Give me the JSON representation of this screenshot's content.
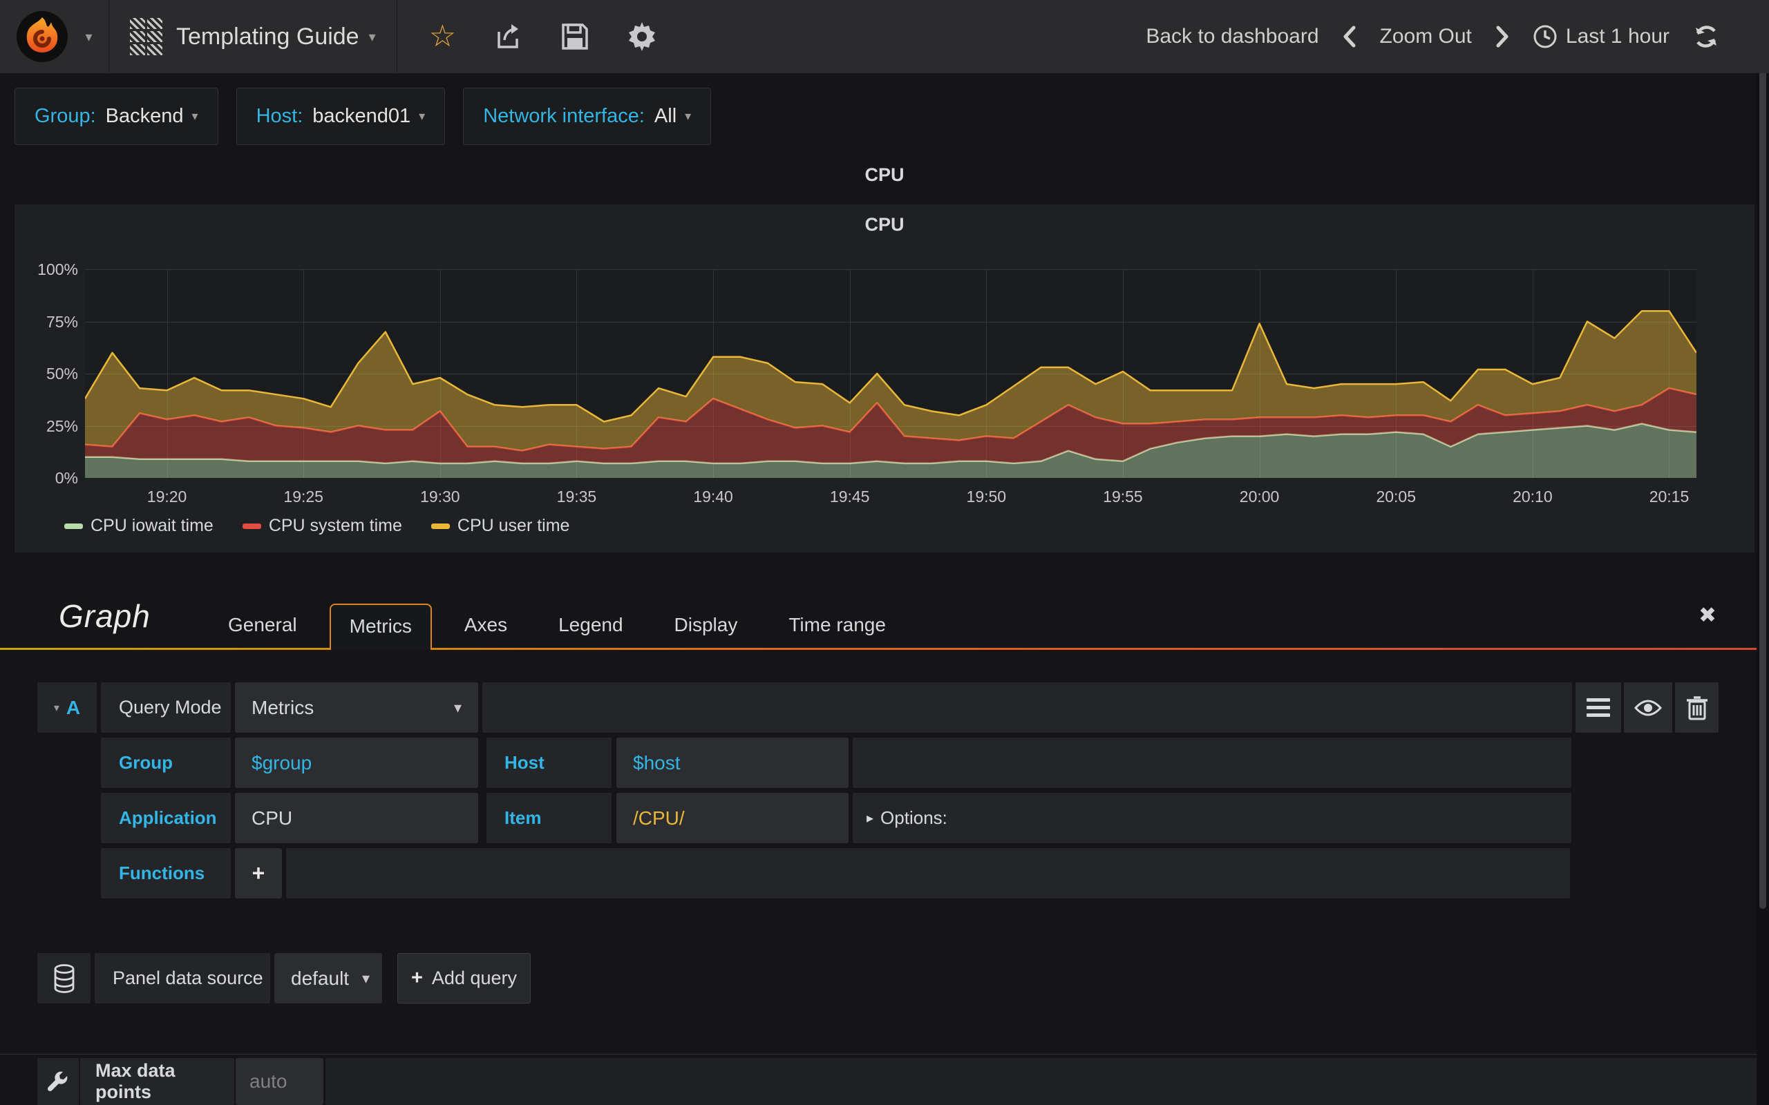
{
  "navbar": {
    "dashboard_title": "Templating Guide",
    "back_to_dashboard": "Back to dashboard",
    "zoom_out": "Zoom Out",
    "time_range": "Last 1 hour"
  },
  "variables": [
    {
      "label": "Group:",
      "value": "Backend"
    },
    {
      "label": "Host:",
      "value": "backend01"
    },
    {
      "label": "Network interface:",
      "value": "All"
    }
  ],
  "panel": {
    "header_title": "CPU",
    "graph_title": "CPU"
  },
  "chart_data": {
    "type": "area",
    "stacked": true,
    "title": "CPU",
    "xlabel": "",
    "ylabel": "",
    "ylim": [
      0,
      100
    ],
    "grid": true,
    "legend_position": "bottom-left",
    "fill_opacity": 0.45,
    "bg_color": "#1b1c1e",
    "grid_color": "#34353a",
    "y_ticks": [
      {
        "label": "0%",
        "value": 0
      },
      {
        "label": "25%",
        "value": 25
      },
      {
        "label": "50%",
        "value": 50
      },
      {
        "label": "75%",
        "value": 75
      },
      {
        "label": "100%",
        "value": 100
      }
    ],
    "x_start": "19:17",
    "x_end": "20:16",
    "x_span_minutes": 59,
    "x_ticks": [
      {
        "label": "19:20",
        "minute": 3
      },
      {
        "label": "19:25",
        "minute": 8
      },
      {
        "label": "19:30",
        "minute": 13
      },
      {
        "label": "19:35",
        "minute": 18
      },
      {
        "label": "19:40",
        "minute": 23
      },
      {
        "label": "19:45",
        "minute": 28
      },
      {
        "label": "19:50",
        "minute": 33
      },
      {
        "label": "19:55",
        "minute": 38
      },
      {
        "label": "20:00",
        "minute": 43
      },
      {
        "label": "20:05",
        "minute": 48
      },
      {
        "label": "20:10",
        "minute": 53
      },
      {
        "label": "20:15",
        "minute": 58
      }
    ],
    "series": [
      {
        "name": "CPU iowait time",
        "color": "#B7DBAB",
        "values": [
          10,
          10,
          9,
          9,
          9,
          9,
          8,
          8,
          8,
          8,
          8,
          7,
          8,
          7,
          7,
          8,
          7,
          7,
          8,
          7,
          7,
          8,
          8,
          7,
          7,
          8,
          8,
          7,
          7,
          8,
          7,
          7,
          8,
          8,
          7,
          8,
          13,
          9,
          8,
          14,
          17,
          19,
          20,
          20,
          21,
          20,
          21,
          21,
          22,
          21,
          15,
          21,
          22,
          23,
          24,
          25,
          23,
          26,
          23,
          22
        ]
      },
      {
        "name": "CPU system time",
        "color": "#E24D42",
        "values": [
          6,
          5,
          22,
          19,
          21,
          18,
          21,
          17,
          16,
          14,
          17,
          16,
          15,
          25,
          8,
          7,
          6,
          9,
          7,
          7,
          8,
          21,
          19,
          31,
          26,
          20,
          16,
          18,
          15,
          28,
          13,
          12,
          10,
          12,
          12,
          19,
          22,
          20,
          18,
          12,
          10,
          9,
          8,
          9,
          8,
          9,
          9,
          8,
          8,
          9,
          12,
          14,
          8,
          8,
          8,
          10,
          9,
          9,
          20,
          18
        ]
      },
      {
        "name": "CPU user time",
        "color": "#EAB839",
        "values": [
          22,
          45,
          12,
          14,
          18,
          15,
          13,
          15,
          14,
          12,
          30,
          47,
          22,
          16,
          25,
          20,
          21,
          19,
          20,
          13,
          15,
          14,
          12,
          20,
          25,
          27,
          22,
          20,
          14,
          14,
          15,
          13,
          12,
          15,
          25,
          26,
          18,
          16,
          25,
          16,
          15,
          14,
          14,
          45,
          16,
          14,
          15,
          16,
          15,
          16,
          10,
          17,
          22,
          14,
          16,
          40,
          35,
          45,
          37,
          20
        ]
      }
    ]
  },
  "editor": {
    "panel_type": "Graph",
    "tabs": [
      {
        "label": "General",
        "active": false
      },
      {
        "label": "Metrics",
        "active": true
      },
      {
        "label": "Axes",
        "active": false
      },
      {
        "label": "Legend",
        "active": false
      },
      {
        "label": "Display",
        "active": false
      },
      {
        "label": "Time range",
        "active": false
      }
    ],
    "query": {
      "ref_id": "A",
      "mode_label": "Query Mode",
      "mode_value": "Metrics",
      "group_label": "Group",
      "group_value": "$group",
      "host_label": "Host",
      "host_value": "$host",
      "app_label": "Application",
      "app_value": "CPU",
      "item_label": "Item",
      "item_value": "/CPU/",
      "options_label": "Options:",
      "functions_label": "Functions",
      "add_function_label": "+"
    },
    "datasource": {
      "label": "Panel data source",
      "value": "default",
      "add_query_label": "Add query"
    },
    "max_data_points": {
      "label": "Max data points",
      "placeholder": "auto"
    }
  },
  "colors": {
    "accent_cyan": "#33b5e5",
    "accent_orange": "#eab839",
    "tab_border": "#dd831f",
    "navbar_bg": "#2b2b2d",
    "panel_bg": "#1f2023",
    "body_bg": "#151517"
  }
}
